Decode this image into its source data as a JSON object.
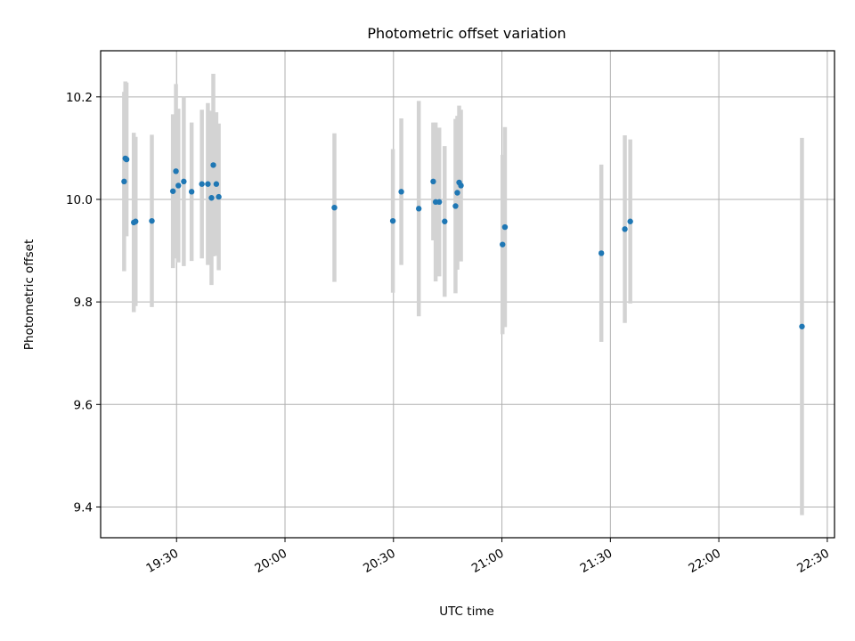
{
  "chart_data": {
    "type": "scatter",
    "title": "Photometric offset variation",
    "xlabel": "UTC time",
    "ylabel": "Photometric offset",
    "x_axis": "time",
    "x_ticks": [
      "19:30",
      "20:00",
      "20:30",
      "21:00",
      "21:30",
      "22:00",
      "22:30"
    ],
    "x_tick_minutes": [
      1170,
      1200,
      1230,
      1260,
      1290,
      1320,
      1350
    ],
    "xlim": [
      "19:09",
      "22:32"
    ],
    "y_ticks": [
      9.4,
      9.6,
      9.8,
      10.0,
      10.2
    ],
    "ylim": [
      9.34,
      10.29
    ],
    "grid": true,
    "error_bar_color": "#d3d3d3",
    "marker_color": "#1f77b4",
    "points": [
      {
        "x": "19:15:30",
        "y": 10.035,
        "err": 0.175
      },
      {
        "x": "19:15:50",
        "y": 10.08,
        "err": 0.15
      },
      {
        "x": "19:16:10",
        "y": 10.078,
        "err": 0.15
      },
      {
        "x": "19:18:10",
        "y": 9.955,
        "err": 0.175
      },
      {
        "x": "19:18:40",
        "y": 9.957,
        "err": 0.165
      },
      {
        "x": "19:23:10",
        "y": 9.958,
        "err": 0.168
      },
      {
        "x": "19:29:00",
        "y": 10.016,
        "err": 0.15
      },
      {
        "x": "19:29:50",
        "y": 10.055,
        "err": 0.17
      },
      {
        "x": "19:30:30",
        "y": 10.027,
        "err": 0.15
      },
      {
        "x": "19:32:00",
        "y": 10.035,
        "err": 0.165
      },
      {
        "x": "19:34:10",
        "y": 10.015,
        "err": 0.135
      },
      {
        "x": "19:37:00",
        "y": 10.03,
        "err": 0.145
      },
      {
        "x": "19:38:40",
        "y": 10.03,
        "err": 0.158
      },
      {
        "x": "19:39:40",
        "y": 10.003,
        "err": 0.17
      },
      {
        "x": "19:40:10",
        "y": 10.067,
        "err": 0.178
      },
      {
        "x": "19:41:00",
        "y": 10.03,
        "err": 0.14
      },
      {
        "x": "19:41:40",
        "y": 10.005,
        "err": 0.143
      },
      {
        "x": "20:13:40",
        "y": 9.984,
        "err": 0.145
      },
      {
        "x": "20:29:50",
        "y": 9.958,
        "err": 0.14
      },
      {
        "x": "20:32:10",
        "y": 10.015,
        "err": 0.143
      },
      {
        "x": "20:37:00",
        "y": 9.982,
        "err": 0.21
      },
      {
        "x": "20:41:00",
        "y": 10.035,
        "err": 0.115
      },
      {
        "x": "20:41:40",
        "y": 9.995,
        "err": 0.155
      },
      {
        "x": "20:42:40",
        "y": 9.995,
        "err": 0.145
      },
      {
        "x": "20:44:10",
        "y": 9.957,
        "err": 0.147
      },
      {
        "x": "20:47:10",
        "y": 9.987,
        "err": 0.17
      },
      {
        "x": "20:47:40",
        "y": 10.013,
        "err": 0.15
      },
      {
        "x": "20:48:10",
        "y": 10.033,
        "err": 0.15
      },
      {
        "x": "20:48:40",
        "y": 10.027,
        "err": 0.148
      },
      {
        "x": "21:00:10",
        "y": 9.912,
        "err": 0.175
      },
      {
        "x": "21:00:50",
        "y": 9.946,
        "err": 0.195
      },
      {
        "x": "21:27:30",
        "y": 9.895,
        "err": 0.173
      },
      {
        "x": "21:34:00",
        "y": 9.942,
        "err": 0.183
      },
      {
        "x": "21:35:30",
        "y": 9.957,
        "err": 0.16
      },
      {
        "x": "22:23:00",
        "y": 9.752,
        "err": 0.368
      }
    ]
  }
}
